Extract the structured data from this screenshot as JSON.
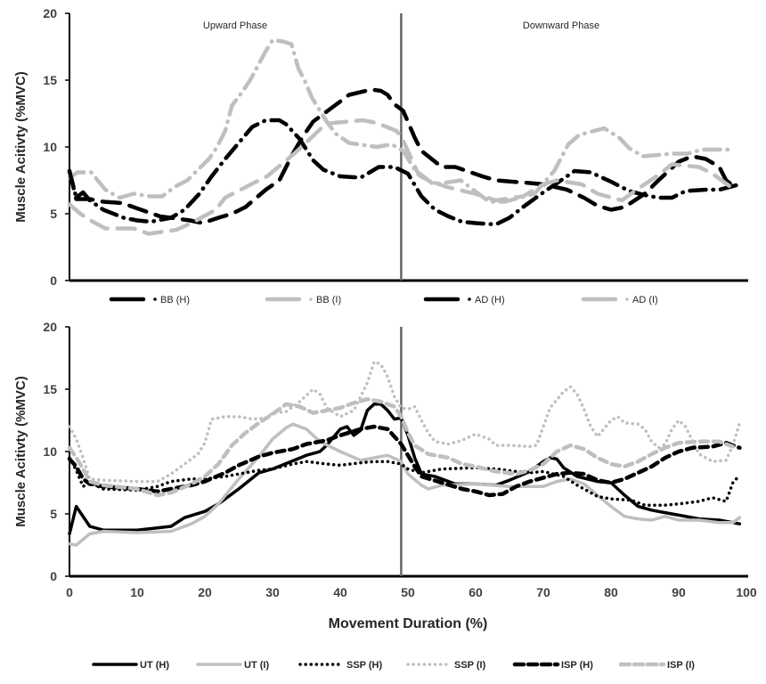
{
  "chart_data": [
    {
      "type": "line",
      "ylabel": "Muscle Acitivty (%MVC)",
      "xlim": [
        0,
        100
      ],
      "ylim": [
        0,
        20
      ],
      "yticks": [
        "0",
        "5",
        "10",
        "15",
        "20"
      ],
      "grid": false,
      "legend": "bottom",
      "phase_divider_x": 49,
      "annotations": [
        "Upward Phase",
        "Downward Phase"
      ],
      "series": [
        {
          "name": "BB (H)",
          "color": "#000000",
          "style": "dash-dot",
          "x": [
            0,
            1,
            2,
            3,
            5,
            8,
            10,
            12,
            15,
            17,
            19.2,
            21,
            23,
            25,
            27,
            29,
            31,
            32,
            34,
            36,
            37.5,
            40,
            43,
            45.7,
            48,
            50,
            52,
            54,
            56,
            58,
            60,
            63,
            65,
            67,
            70,
            72.6,
            74.6,
            77,
            80,
            82.7,
            85,
            87,
            89,
            91,
            94,
            96,
            99
          ],
          "y": [
            8.2,
            6.2,
            6.6,
            6.0,
            5.3,
            4.7,
            4.5,
            4.4,
            4.7,
            5.3,
            6.5,
            7.8,
            9.1,
            10.3,
            11.5,
            12.0,
            12.0,
            11.7,
            10.6,
            9.0,
            8.3,
            7.8,
            7.7,
            8.5,
            8.5,
            8.0,
            6.3,
            5.3,
            4.8,
            4.4,
            4.3,
            4.2,
            4.7,
            5.5,
            6.6,
            7.5,
            8.2,
            8.1,
            7.4,
            6.7,
            6.4,
            6.2,
            6.2,
            6.7,
            6.8,
            6.8,
            7.2
          ]
        },
        {
          "name": "BB (I)",
          "color": "#bfbfbf",
          "style": "dash-dot",
          "x": [
            0,
            1.2,
            3.2,
            5.3,
            7.4,
            9.5,
            12,
            13.7,
            15.5,
            17.4,
            19,
            20.6,
            21.8,
            23,
            24,
            25.5,
            26.8,
            28.8,
            30,
            31.5,
            32.8,
            33.8,
            34.9,
            35.8,
            38,
            39.3,
            41.3,
            45.4,
            47.6,
            49.3,
            51,
            52,
            53.8,
            57.8,
            62,
            64.3,
            68.7,
            71.6,
            73.7,
            75.3,
            77.5,
            79,
            81.2,
            82.7,
            84.7,
            89,
            91.3,
            93.4,
            97.9
          ],
          "y": [
            7.7,
            8.1,
            8.1,
            6.8,
            6.2,
            6.5,
            6.3,
            6.3,
            7.0,
            7.5,
            8.3,
            9.1,
            10.0,
            11.2,
            13.1,
            14.1,
            15.1,
            17.0,
            18.0,
            17.9,
            17.7,
            15.9,
            14.8,
            13.7,
            11.9,
            11.0,
            10.3,
            10.0,
            10.2,
            9.7,
            8.3,
            7.9,
            7.2,
            7.5,
            5.9,
            5.9,
            6.5,
            8.2,
            10.2,
            10.9,
            11.2,
            11.4,
            10.7,
            9.9,
            9.3,
            9.5,
            9.5,
            9.8,
            9.8
          ]
        },
        {
          "name": "AD (H)",
          "color": "#000000",
          "style": "long-dash",
          "x": [
            0,
            1,
            3,
            5,
            7.8,
            10,
            11.7,
            13.4,
            15,
            17.8,
            19.7,
            22,
            24,
            26,
            29,
            31,
            33,
            34.5,
            36,
            38.4,
            41.3,
            44.6,
            46,
            47,
            48,
            49.3,
            51,
            52,
            55,
            57,
            61,
            63,
            68,
            70,
            73.5,
            76,
            78,
            80,
            82,
            85,
            87,
            90,
            92,
            94,
            96,
            97,
            98.5
          ],
          "y": [
            8.2,
            6.1,
            6.1,
            5.9,
            5.8,
            5.4,
            5.1,
            4.8,
            4.7,
            4.5,
            4.3,
            4.7,
            5.0,
            5.5,
            6.8,
            7.5,
            9.5,
            10.8,
            11.9,
            12.8,
            13.9,
            14.3,
            14.2,
            13.9,
            13.2,
            12.7,
            10.7,
            9.7,
            8.5,
            8.5,
            7.8,
            7.5,
            7.3,
            7.2,
            6.8,
            6.2,
            5.6,
            5.3,
            5.5,
            6.5,
            7.5,
            8.9,
            9.3,
            9.1,
            8.5,
            7.5,
            6.9
          ]
        },
        {
          "name": "AD (I)",
          "color": "#bfbfbf",
          "style": "long-dash",
          "x": [
            0,
            1.6,
            3.1,
            5.3,
            9.5,
            11.7,
            15.8,
            18,
            21.6,
            23,
            26.8,
            29.2,
            33.2,
            34.5,
            37.8,
            39,
            43.3,
            45.4,
            48.3,
            49,
            51.6,
            53,
            55.8,
            59.9,
            63,
            67,
            70,
            72,
            75.7,
            78,
            81.6,
            83.5,
            87,
            89,
            93,
            95,
            98.5
          ],
          "y": [
            5.7,
            5.0,
            4.5,
            3.9,
            3.9,
            3.5,
            3.8,
            4.3,
            5.3,
            6.2,
            7.2,
            7.8,
            9.5,
            10.1,
            11.7,
            11.8,
            12.0,
            11.8,
            11.2,
            10.8,
            7.9,
            7.5,
            7.0,
            6.5,
            6.0,
            6.3,
            7.2,
            7.5,
            7.2,
            6.5,
            6.0,
            6.7,
            7.9,
            8.7,
            8.5,
            8.0,
            6.7
          ]
        }
      ]
    },
    {
      "type": "line",
      "xlabel": "Movement Duration (%)",
      "ylabel": "Muscle Acitivty (%MVC)",
      "xlim": [
        0,
        100
      ],
      "ylim": [
        0,
        20
      ],
      "xticks": [
        "0",
        "10",
        "20",
        "30",
        "40",
        "50",
        "60",
        "70",
        "80",
        "90",
        "100"
      ],
      "yticks": [
        "0",
        "5",
        "10",
        "15",
        "20"
      ],
      "grid": false,
      "legend": "bottom",
      "phase_divider_x": 49,
      "series": [
        {
          "name": "UT (H)",
          "color": "#000000",
          "style": "solid",
          "x": [
            0,
            1,
            3,
            5,
            10,
            15,
            17,
            20,
            22,
            25,
            28,
            30,
            35,
            37,
            38,
            40,
            41,
            42,
            43,
            44,
            45,
            46,
            47,
            48,
            49,
            50,
            51,
            52,
            54,
            55,
            57,
            60,
            63,
            65,
            68,
            70,
            71,
            72,
            73,
            75,
            78,
            80,
            82,
            84,
            86,
            88,
            90,
            93,
            96,
            99
          ],
          "y": [
            3.4,
            5.6,
            4.0,
            3.7,
            3.7,
            4.0,
            4.7,
            5.2,
            5.8,
            7.0,
            8.3,
            8.6,
            9.7,
            10.0,
            10.5,
            11.8,
            12.0,
            11.3,
            11.7,
            13.3,
            13.8,
            13.8,
            13.3,
            12.6,
            12.7,
            11.3,
            9.5,
            8.2,
            8.0,
            7.8,
            7.4,
            7.4,
            7.3,
            7.7,
            8.4,
            9.2,
            9.5,
            9.4,
            8.7,
            8.0,
            7.6,
            7.5,
            6.5,
            5.6,
            5.3,
            5.1,
            4.9,
            4.6,
            4.5,
            4.2
          ]
        },
        {
          "name": "UT (I)",
          "color": "#bfbfbf",
          "style": "solid",
          "x": [
            0,
            1,
            3,
            5,
            10,
            15,
            18,
            20,
            22,
            25,
            28,
            30,
            32,
            33,
            35,
            37,
            40,
            43,
            45,
            47,
            49,
            50,
            52,
            53,
            55,
            60,
            65,
            70,
            72,
            74,
            76,
            78,
            80,
            82,
            84,
            86,
            88,
            90,
            93,
            96,
            98,
            99
          ],
          "y": [
            2.6,
            2.5,
            3.4,
            3.6,
            3.5,
            3.6,
            4.2,
            4.8,
            5.8,
            7.8,
            9.6,
            11.0,
            11.9,
            12.2,
            11.8,
            10.8,
            10.0,
            9.3,
            9.5,
            9.7,
            9.2,
            8.2,
            7.3,
            7.0,
            7.3,
            7.4,
            7.2,
            7.2,
            7.6,
            7.8,
            7.4,
            6.5,
            5.6,
            4.8,
            4.6,
            4.5,
            4.8,
            4.5,
            4.5,
            4.3,
            4.3,
            4.7
          ]
        },
        {
          "name": "SSP (H)",
          "color": "#000000",
          "style": "dotted",
          "x": [
            0,
            1,
            2,
            3,
            5,
            10,
            13,
            15,
            18,
            20,
            23,
            25,
            28,
            30,
            33,
            35,
            38,
            40,
            43,
            45,
            47,
            49,
            50,
            52,
            55,
            60,
            63,
            66,
            68,
            70,
            73,
            75,
            78,
            80,
            83,
            85,
            88,
            90,
            93,
            95,
            97,
            98,
            99
          ],
          "y": [
            9.5,
            8.5,
            7.2,
            7.5,
            7.0,
            6.9,
            7.2,
            7.6,
            7.8,
            7.8,
            8.0,
            8.2,
            8.5,
            8.6,
            9.0,
            9.2,
            9.0,
            8.9,
            9.1,
            9.2,
            9.2,
            9.0,
            8.6,
            8.3,
            8.6,
            8.7,
            8.6,
            8.4,
            8.3,
            8.4,
            8.0,
            7.3,
            6.4,
            6.2,
            6.1,
            5.7,
            5.7,
            5.8,
            6.0,
            6.3,
            6.0,
            7.5,
            8.1
          ]
        },
        {
          "name": "SSP (I)",
          "color": "#bfbfbf",
          "style": "dotted",
          "x": [
            0,
            1,
            2,
            3,
            5,
            10,
            13,
            15,
            17,
            19,
            20,
            21,
            23,
            25,
            27,
            29,
            30,
            32,
            34,
            36,
            37,
            38,
            40,
            42,
            44,
            45,
            46,
            47,
            48,
            49,
            50,
            51,
            52,
            53,
            54,
            56,
            58,
            60,
            62,
            63,
            65,
            68,
            69,
            70,
            71,
            73,
            74,
            75,
            76,
            77,
            78,
            80,
            81,
            82,
            84,
            85,
            86,
            87,
            88,
            89,
            90,
            91,
            92,
            93,
            95,
            97,
            98,
            99
          ],
          "y": [
            12.0,
            11.0,
            9.5,
            7.8,
            7.7,
            7.6,
            7.6,
            8.2,
            9.0,
            9.8,
            10.7,
            12.6,
            12.8,
            12.8,
            12.6,
            12.7,
            13.1,
            13.2,
            14.0,
            15.0,
            14.6,
            13.5,
            12.8,
            13.3,
            15.5,
            17.2,
            17.0,
            16.0,
            14.4,
            13.5,
            13.4,
            13.6,
            12.5,
            11.5,
            10.8,
            10.6,
            10.9,
            11.4,
            11.0,
            10.5,
            10.5,
            10.4,
            10.5,
            12.0,
            13.5,
            14.8,
            15.2,
            14.6,
            13.4,
            12.0,
            11.2,
            12.5,
            12.8,
            12.3,
            12.2,
            11.8,
            10.8,
            10.3,
            10.6,
            11.8,
            12.5,
            12.0,
            10.9,
            9.8,
            9.2,
            9.3,
            10.5,
            12.3
          ]
        },
        {
          "name": "ISP (H)",
          "color": "#000000",
          "style": "dashed",
          "x": [
            0,
            1,
            2,
            3,
            5,
            10,
            13,
            15,
            18,
            20,
            23,
            25,
            28,
            30,
            33,
            35,
            38,
            40,
            43,
            45,
            47,
            49,
            50,
            51,
            52,
            55,
            58,
            60,
            62,
            64,
            66,
            68,
            70,
            72,
            74,
            76,
            78,
            80,
            82,
            84,
            86,
            88,
            90,
            92,
            95,
            97,
            99
          ],
          "y": [
            9.4,
            8.8,
            7.8,
            7.4,
            7.2,
            7.0,
            6.8,
            7.0,
            7.3,
            7.6,
            8.3,
            8.9,
            9.6,
            9.9,
            10.2,
            10.6,
            10.9,
            11.3,
            11.8,
            12.0,
            11.8,
            10.6,
            9.7,
            8.8,
            8.0,
            7.5,
            7.0,
            6.8,
            6.5,
            6.6,
            7.2,
            7.6,
            7.9,
            8.2,
            8.3,
            8.2,
            7.7,
            7.5,
            7.8,
            8.3,
            8.8,
            9.5,
            10.0,
            10.3,
            10.4,
            10.7,
            10.3
          ]
        },
        {
          "name": "ISP (I)",
          "color": "#bfbfbf",
          "style": "dashed",
          "x": [
            0,
            1,
            2,
            3,
            5,
            10,
            13,
            15,
            18,
            20,
            22,
            24,
            26,
            28,
            30,
            32,
            34,
            36,
            38,
            40,
            42,
            44,
            46,
            48,
            49,
            50,
            51,
            53,
            56,
            58,
            60,
            63,
            66,
            68,
            70,
            72,
            74,
            76,
            78,
            80,
            82,
            84,
            86,
            88,
            90,
            93,
            96,
            98
          ],
          "y": [
            10.3,
            9.5,
            8.6,
            7.6,
            7.3,
            7.0,
            6.5,
            6.7,
            7.4,
            8.0,
            9.0,
            10.5,
            11.5,
            12.3,
            13.0,
            13.8,
            13.6,
            13.1,
            13.3,
            13.5,
            13.9,
            14.2,
            14.0,
            13.6,
            12.8,
            11.5,
            10.5,
            9.8,
            9.5,
            9.0,
            8.8,
            8.4,
            8.2,
            8.5,
            9.0,
            10.0,
            10.5,
            10.2,
            9.5,
            9.0,
            8.8,
            9.2,
            9.8,
            10.3,
            10.7,
            10.8,
            10.8,
            10.4
          ]
        }
      ]
    }
  ]
}
